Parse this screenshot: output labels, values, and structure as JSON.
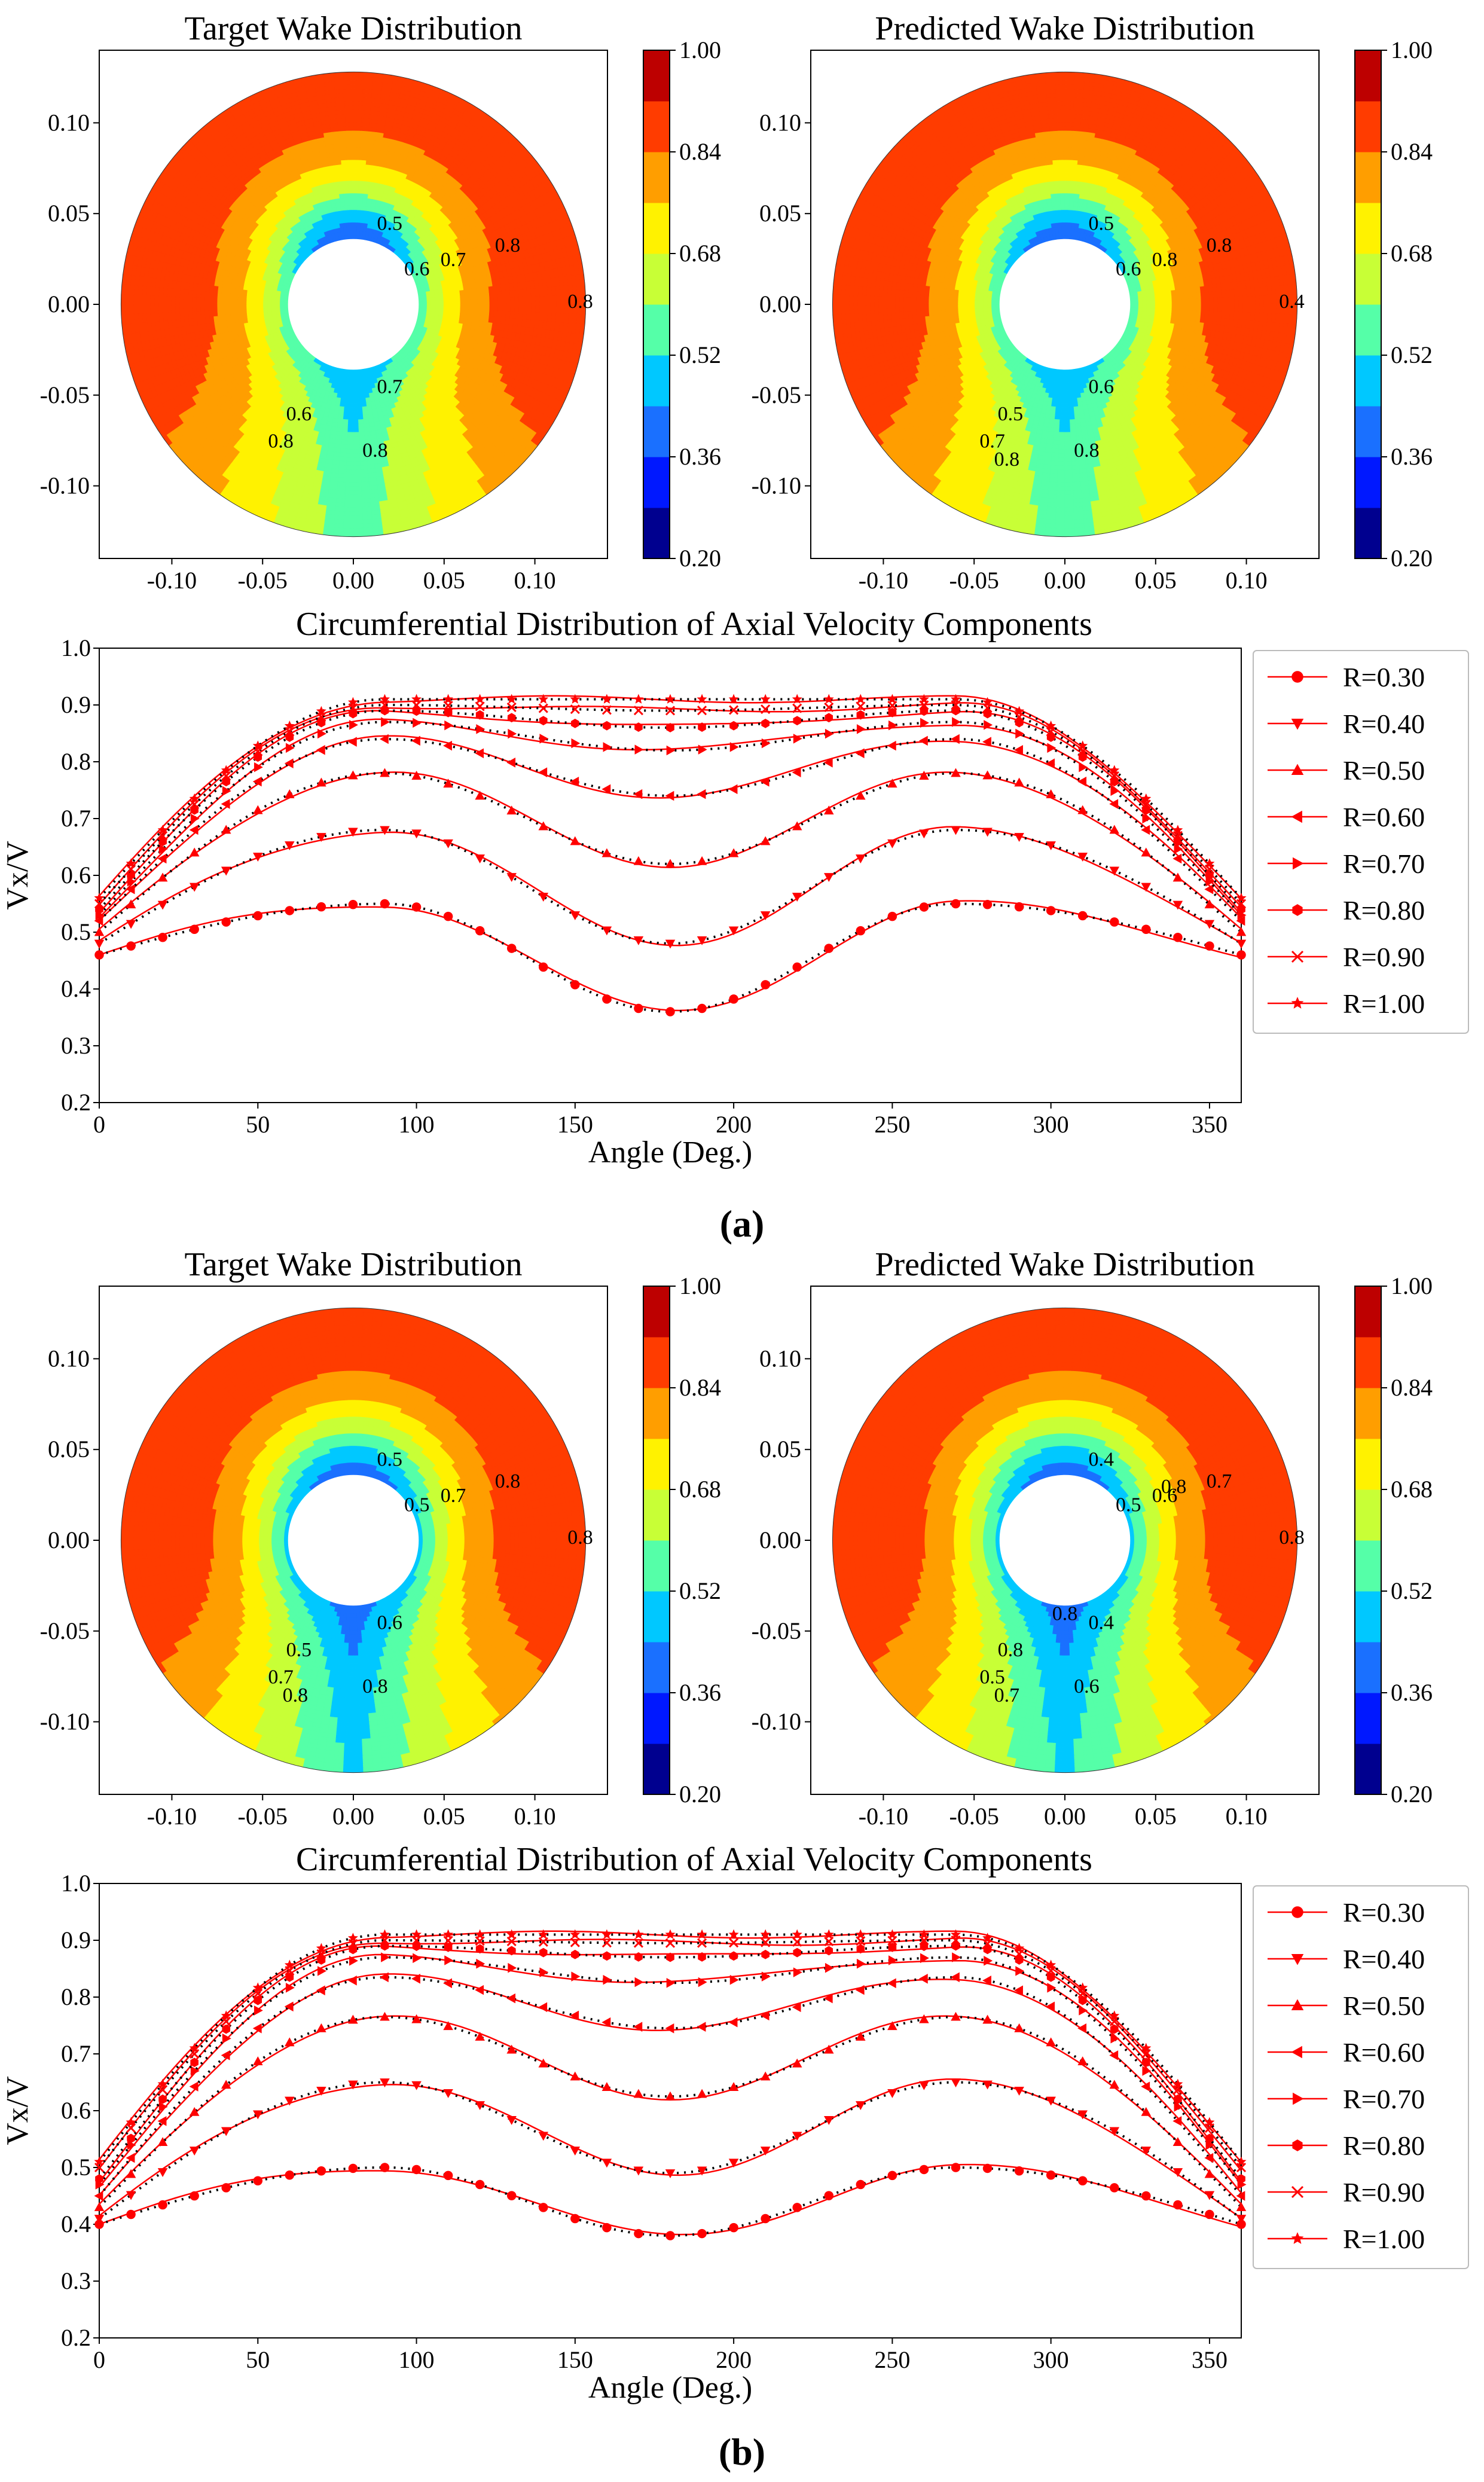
{
  "colormap": {
    "levels": [
      0.2,
      0.28,
      0.36,
      0.44,
      0.52,
      0.6,
      0.68,
      0.76,
      0.84,
      0.92,
      1.0
    ],
    "colors": [
      "#00008f",
      "#0018ff",
      "#1a70ff",
      "#00c8ff",
      "#55ffa8",
      "#c8ff36",
      "#fff200",
      "#ff9e00",
      "#ff3c00",
      "#bd0000"
    ],
    "tick_labels": [
      "0.20",
      "0.36",
      "0.52",
      "0.68",
      "0.84",
      "1.00"
    ]
  },
  "legend_labels": [
    "R=0.30",
    "R=0.40",
    "R=0.50",
    "R=0.60",
    "R=0.70",
    "R=0.80",
    "R=0.90",
    "R=1.00"
  ],
  "line_color": "#ff0000",
  "markers": [
    "circle",
    "triangle-down",
    "triangle-up",
    "triangle-left",
    "triangle-right",
    "hexagon",
    "x",
    "star"
  ],
  "figure_labels": [
    "(a)",
    "(b)"
  ],
  "chart_data": [
    {
      "type": "heatmap",
      "title": "Target Wake Distribution",
      "xticks": [
        "-0.10",
        "-0.05",
        "0.00",
        "0.05",
        "0.10"
      ],
      "yticks": [
        "0.10",
        "0.05",
        "0.00",
        "-0.05",
        "-0.10"
      ],
      "xlim": [
        -0.14,
        0.14
      ],
      "ylim": [
        -0.14,
        0.14
      ],
      "profile_ref": "a",
      "contour_labels": [
        "0.5",
        "0.6",
        "0.7",
        "0.8",
        "0.8",
        "0.6",
        "0.7",
        "0.8",
        "0.8"
      ]
    },
    {
      "type": "heatmap",
      "title": "Predicted Wake Distribution",
      "xticks": [
        "-0.10",
        "-0.05",
        "0.00",
        "0.05",
        "0.10"
      ],
      "yticks": [
        "0.10",
        "0.05",
        "0.00",
        "-0.05",
        "-0.10"
      ],
      "xlim": [
        -0.14,
        0.14
      ],
      "ylim": [
        -0.14,
        0.14
      ],
      "profile_ref": "a",
      "contour_labels": [
        "0.5",
        "0.6",
        "0.8",
        "0.8",
        "0.4",
        "0.5",
        "0.6",
        "0.7",
        "0.8",
        "0.8"
      ]
    },
    {
      "type": "line",
      "id": "a",
      "title": "Circumferential Distribution of Axial Velocity Components",
      "xlabel": "Angle (Deg.)",
      "ylabel": "Vx/V",
      "xlim": [
        0,
        360
      ],
      "ylim": [
        0.2,
        1.0
      ],
      "xticks": [
        "0",
        "50",
        "100",
        "150",
        "200",
        "250",
        "300",
        "350"
      ],
      "yticks": [
        "0.2",
        "0.3",
        "0.4",
        "0.5",
        "0.6",
        "0.7",
        "0.8",
        "0.9",
        "1.0"
      ],
      "legend": "right-outside",
      "series": [
        {
          "name": "R=0.30",
          "v0": 0.46,
          "peak": 0.55,
          "trough": 0.36
        },
        {
          "name": "R=0.40",
          "v0": 0.48,
          "peak": 0.68,
          "trough": 0.48
        },
        {
          "name": "R=0.50",
          "v0": 0.5,
          "peak": 0.78,
          "trough": 0.62
        },
        {
          "name": "R=0.60",
          "v0": 0.52,
          "peak": 0.84,
          "trough": 0.74
        },
        {
          "name": "R=0.70",
          "v0": 0.53,
          "peak": 0.87,
          "trough": 0.82
        },
        {
          "name": "R=0.80",
          "v0": 0.54,
          "peak": 0.89,
          "trough": 0.86
        },
        {
          "name": "R=0.90",
          "v0": 0.55,
          "peak": 0.9,
          "trough": 0.89
        },
        {
          "name": "R=1.00",
          "v0": 0.56,
          "peak": 0.91,
          "trough": 0.91
        }
      ]
    },
    {
      "type": "heatmap",
      "title": "Target Wake Distribution",
      "xticks": [
        "-0.10",
        "-0.05",
        "0.00",
        "0.05",
        "0.10"
      ],
      "yticks": [
        "0.10",
        "0.05",
        "0.00",
        "-0.05",
        "-0.10"
      ],
      "xlim": [
        -0.14,
        0.14
      ],
      "ylim": [
        -0.14,
        0.14
      ],
      "profile_ref": "b",
      "contour_labels": [
        "0.5",
        "0.5",
        "0.7",
        "0.8",
        "0.8",
        "0.5",
        "0.6",
        "0.7",
        "0.8",
        "0.8"
      ]
    },
    {
      "type": "heatmap",
      "title": "Predicted Wake Distribution",
      "xticks": [
        "-0.10",
        "-0.05",
        "0.00",
        "0.05",
        "0.10"
      ],
      "yticks": [
        "0.10",
        "0.05",
        "0.00",
        "-0.05",
        "-0.10"
      ],
      "xlim": [
        -0.14,
        0.14
      ],
      "ylim": [
        -0.14,
        0.14
      ],
      "profile_ref": "b",
      "contour_labels": [
        "0.4",
        "0.5",
        "0.6",
        "0.7",
        "0.8",
        "0.8",
        "0.4",
        "0.5",
        "0.6",
        "0.7",
        "0.8",
        "0.8"
      ]
    },
    {
      "type": "line",
      "id": "b",
      "title": "Circumferential Distribution of Axial Velocity Components",
      "xlabel": "Angle (Deg.)",
      "ylabel": "Vx/V",
      "xlim": [
        0,
        360
      ],
      "ylim": [
        0.2,
        1.0
      ],
      "xticks": [
        "0",
        "50",
        "100",
        "150",
        "200",
        "250",
        "300",
        "350"
      ],
      "yticks": [
        "0.2",
        "0.3",
        "0.4",
        "0.5",
        "0.6",
        "0.7",
        "0.8",
        "0.9",
        "1.0"
      ],
      "legend": "right-outside",
      "series": [
        {
          "name": "R=0.30",
          "v0": 0.4,
          "peak": 0.5,
          "trough": 0.38
        },
        {
          "name": "R=0.40",
          "v0": 0.41,
          "peak": 0.65,
          "trough": 0.49
        },
        {
          "name": "R=0.50",
          "v0": 0.43,
          "peak": 0.765,
          "trough": 0.625
        },
        {
          "name": "R=0.60",
          "v0": 0.45,
          "peak": 0.835,
          "trough": 0.745
        },
        {
          "name": "R=0.70",
          "v0": 0.47,
          "peak": 0.87,
          "trough": 0.825
        },
        {
          "name": "R=0.80",
          "v0": 0.48,
          "peak": 0.89,
          "trough": 0.87
        },
        {
          "name": "R=0.90",
          "v0": 0.5,
          "peak": 0.9,
          "trough": 0.895
        },
        {
          "name": "R=1.00",
          "v0": 0.51,
          "peak": 0.91,
          "trough": 0.91
        }
      ]
    }
  ]
}
